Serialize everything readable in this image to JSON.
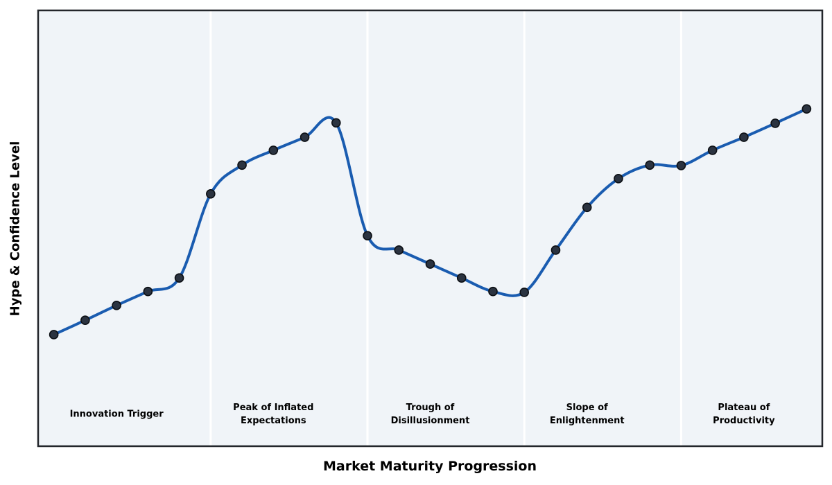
{
  "chart_data": {
    "type": "line",
    "title": "",
    "xlabel": "Market Maturity Progression",
    "ylabel": "Hype & Confidence Level",
    "x": [
      0,
      1,
      2,
      3,
      4,
      5,
      6,
      7,
      8,
      9,
      10,
      11,
      12,
      13,
      14,
      15,
      16,
      17,
      18,
      19,
      20,
      21,
      22,
      23,
      24
    ],
    "values": [
      25.6,
      28.9,
      32.3,
      35.5,
      38.6,
      57.9,
      64.5,
      67.9,
      70.9,
      74.2,
      48.3,
      45.0,
      41.8,
      38.6,
      35.5,
      35.3,
      45.0,
      54.8,
      61.4,
      64.5,
      64.4,
      67.9,
      70.9,
      74.1,
      77.4
    ],
    "xlim": [
      -0.5,
      24.5
    ],
    "ylim": [
      0,
      100
    ],
    "grid": false,
    "legend_position": "none",
    "ticks_visible": false,
    "curve_style": "smooth-spline",
    "marker": "circle",
    "phases": [
      {
        "label": "Innovation Trigger",
        "center_index": 2
      },
      {
        "label": "Peak of Inflated\nExpectations",
        "center_index": 7
      },
      {
        "label": "Trough of\nDisillusionment",
        "center_index": 12
      },
      {
        "label": "Slope of\nEnlightenment",
        "center_index": 17
      },
      {
        "label": "Plateau of\nProductivity",
        "center_index": 22
      }
    ],
    "phase_boundary_indices": [
      5,
      10,
      15,
      20
    ],
    "colors": {
      "line": "#1a5cb0",
      "marker_fill": "#2b3340",
      "marker_edge": "#0c0f14",
      "plot_bg": "#f0f4f8",
      "separator": "#ffffff",
      "frame": "#23262b",
      "text": "#000000"
    }
  }
}
